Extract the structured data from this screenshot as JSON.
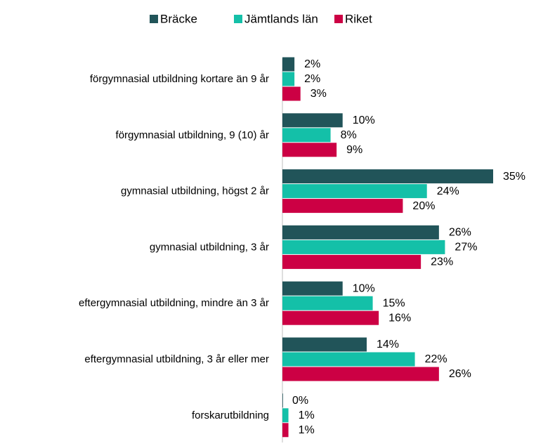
{
  "chart_data": {
    "type": "barh",
    "categories": [
      "förgymnasial utbildning kortare än 9 år",
      "förgymnasial utbildning, 9 (10) år",
      "gymnasial utbildning, högst 2 år",
      "gymnasial utbildning, 3 år",
      "eftergymnasial utbildning, mindre än 3 år",
      "eftergymnasial utbildning, 3 år eller mer",
      "forskarutbildning"
    ],
    "series": [
      {
        "name": "Bräcke",
        "color": "#215459",
        "values": [
          2,
          10,
          35,
          26,
          10,
          14,
          0
        ],
        "value_labels": [
          "2%",
          "10%",
          "35%",
          "26%",
          "10%",
          "14%",
          "0%"
        ]
      },
      {
        "name": "Jämtlands län",
        "color": "#14c0a8",
        "values": [
          2,
          8,
          24,
          27,
          15,
          22,
          1
        ],
        "value_labels": [
          "2%",
          "8%",
          "24%",
          "27%",
          "15%",
          "22%",
          "1%"
        ]
      },
      {
        "name": "Riket",
        "color": "#cc0044",
        "values": [
          3,
          9,
          20,
          23,
          16,
          26,
          1
        ],
        "value_labels": [
          "3%",
          "9%",
          "20%",
          "23%",
          "16%",
          "26%",
          "1%"
        ]
      }
    ],
    "legend": "top"
  }
}
